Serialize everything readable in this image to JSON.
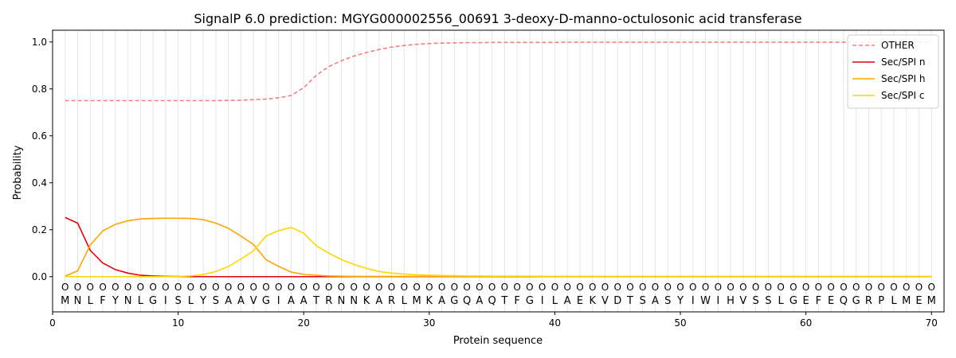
{
  "chart_data": {
    "type": "line",
    "title": "SignalP 6.0 prediction: MGYG000002556_00691 3-deoxy-D-manno-octulosonic acid transferase",
    "xlabel": "Protein sequence",
    "ylabel": "Probability",
    "xlim": [
      0,
      71
    ],
    "ylim": [
      -0.15,
      1.05
    ],
    "xticks": [
      0,
      10,
      20,
      30,
      40,
      50,
      60,
      70
    ],
    "yticks": [
      0.0,
      0.2,
      0.4,
      0.6,
      0.8,
      1.0
    ],
    "xtick_labels": [
      "0",
      "10",
      "20",
      "30",
      "40",
      "50",
      "60",
      "70"
    ],
    "ytick_labels": [
      "0.0",
      "0.2",
      "0.4",
      "0.6",
      "0.8",
      "1.0"
    ],
    "legend_position": "top-right",
    "sequence": [
      "M",
      "N",
      "L",
      "F",
      "Y",
      "N",
      "L",
      "G",
      "I",
      "S",
      "L",
      "Y",
      "S",
      "A",
      "A",
      "V",
      "G",
      "I",
      "A",
      "A",
      "T",
      "R",
      "N",
      "N",
      "K",
      "A",
      "R",
      "L",
      "M",
      "K",
      "A",
      "G",
      "Q",
      "A",
      "Q",
      "T",
      "F",
      "G",
      "I",
      "L",
      "A",
      "E",
      "K",
      "V",
      "D",
      "T",
      "S",
      "A",
      "S",
      "Y",
      "I",
      "W",
      "I",
      "H",
      "V",
      "S",
      "S",
      "L",
      "G",
      "E",
      "F",
      "E",
      "Q",
      "G",
      "R",
      "P",
      "L",
      "M",
      "E",
      "M"
    ],
    "region_labels": [
      "O",
      "O",
      "O",
      "O",
      "O",
      "O",
      "O",
      "O",
      "O",
      "O",
      "O",
      "O",
      "O",
      "O",
      "O",
      "O",
      "O",
      "O",
      "O",
      "O",
      "O",
      "O",
      "O",
      "O",
      "O",
      "O",
      "O",
      "O",
      "O",
      "O",
      "O",
      "O",
      "O",
      "O",
      "O",
      "O",
      "O",
      "O",
      "O",
      "O",
      "O",
      "O",
      "O",
      "O",
      "O",
      "O",
      "O",
      "O",
      "O",
      "O",
      "O",
      "O",
      "O",
      "O",
      "O",
      "O",
      "O",
      "O",
      "O",
      "O",
      "O",
      "O",
      "O",
      "O",
      "O",
      "O",
      "O",
      "O",
      "O",
      "O"
    ],
    "x": [
      1,
      2,
      3,
      4,
      5,
      6,
      7,
      8,
      9,
      10,
      11,
      12,
      13,
      14,
      15,
      16,
      17,
      18,
      19,
      20,
      21,
      22,
      23,
      24,
      25,
      26,
      27,
      28,
      29,
      30,
      31,
      32,
      33,
      34,
      35,
      36,
      37,
      38,
      39,
      40,
      41,
      42,
      43,
      44,
      45,
      46,
      47,
      48,
      49,
      50,
      51,
      52,
      53,
      54,
      55,
      56,
      57,
      58,
      59,
      60,
      61,
      62,
      63,
      64,
      65,
      66,
      67,
      68,
      69,
      70
    ],
    "series": [
      {
        "name": "OTHER",
        "color": "#f08080",
        "dashed": true,
        "values": [
          0.75,
          0.75,
          0.75,
          0.75,
          0.75,
          0.75,
          0.75,
          0.75,
          0.75,
          0.75,
          0.75,
          0.75,
          0.75,
          0.751,
          0.752,
          0.754,
          0.757,
          0.762,
          0.772,
          0.805,
          0.858,
          0.895,
          0.92,
          0.94,
          0.955,
          0.968,
          0.978,
          0.985,
          0.99,
          0.993,
          0.995,
          0.996,
          0.997,
          0.997,
          0.998,
          0.998,
          0.998,
          0.998,
          0.998,
          0.998,
          0.999,
          0.999,
          0.999,
          0.999,
          0.999,
          0.999,
          0.999,
          0.999,
          0.999,
          0.999,
          0.999,
          0.999,
          0.999,
          0.999,
          0.999,
          0.999,
          0.999,
          0.999,
          0.999,
          0.999,
          0.999,
          0.999,
          0.999,
          0.999,
          0.999,
          0.999,
          0.999,
          0.999,
          0.999,
          0.999
        ]
      },
      {
        "name": "Sec/SPI n",
        "color": "#e8000b",
        "dashed": false,
        "values": [
          0.252,
          0.228,
          0.112,
          0.058,
          0.03,
          0.015,
          0.006,
          0.003,
          0.001,
          0.001,
          0,
          0,
          0,
          0,
          0,
          0,
          0,
          0,
          0,
          0,
          0,
          0,
          0,
          0,
          0,
          0,
          0,
          0,
          0,
          0,
          0,
          0,
          0,
          0,
          0,
          0,
          0,
          0,
          0,
          0,
          0,
          0,
          0,
          0,
          0,
          0,
          0,
          0,
          0,
          0,
          0,
          0,
          0,
          0,
          0,
          0,
          0,
          0,
          0,
          0,
          0,
          0,
          0,
          0,
          0,
          0,
          0,
          0,
          0,
          0
        ]
      },
      {
        "name": "Sec/SPI h",
        "color": "#ffa500",
        "dashed": false,
        "values": [
          0.002,
          0.025,
          0.135,
          0.195,
          0.223,
          0.238,
          0.246,
          0.248,
          0.249,
          0.249,
          0.248,
          0.243,
          0.228,
          0.206,
          0.173,
          0.137,
          0.072,
          0.044,
          0.019,
          0.01,
          0.006,
          0.003,
          0.002,
          0.001,
          0.001,
          0.001,
          0.001,
          0.001,
          0.001,
          0.001,
          0.001,
          0.001,
          0.001,
          0.001,
          0.001,
          0.001,
          0.001,
          0.001,
          0.001,
          0.001,
          0.001,
          0.001,
          0.001,
          0.001,
          0.001,
          0.001,
          0.001,
          0.001,
          0.001,
          0.001,
          0.001,
          0.001,
          0.001,
          0.001,
          0.001,
          0.001,
          0.001,
          0.001,
          0.001,
          0.001,
          0.001,
          0.001,
          0.001,
          0.001,
          0.001,
          0.001,
          0.001,
          0.001,
          0.001,
          0.001
        ]
      },
      {
        "name": "Sec/SPI c",
        "color": "#ffd700",
        "dashed": false,
        "values": [
          0,
          0,
          0,
          0,
          0,
          0,
          0,
          0,
          0,
          0.001,
          0.003,
          0.009,
          0.022,
          0.043,
          0.075,
          0.11,
          0.173,
          0.196,
          0.21,
          0.185,
          0.132,
          0.1,
          0.073,
          0.052,
          0.035,
          0.022,
          0.015,
          0.011,
          0.008,
          0.006,
          0.005,
          0.004,
          0.003,
          0.003,
          0.002,
          0.002,
          0.002,
          0.002,
          0.001,
          0.001,
          0.001,
          0.001,
          0.001,
          0.001,
          0.001,
          0.001,
          0.001,
          0.001,
          0.001,
          0.001,
          0.001,
          0.001,
          0.001,
          0.001,
          0.001,
          0.001,
          0.001,
          0.001,
          0.001,
          0.001,
          0.001,
          0.001,
          0.001,
          0.001,
          0.001,
          0.001,
          0.001,
          0.001,
          0.001,
          0.001
        ]
      }
    ]
  }
}
